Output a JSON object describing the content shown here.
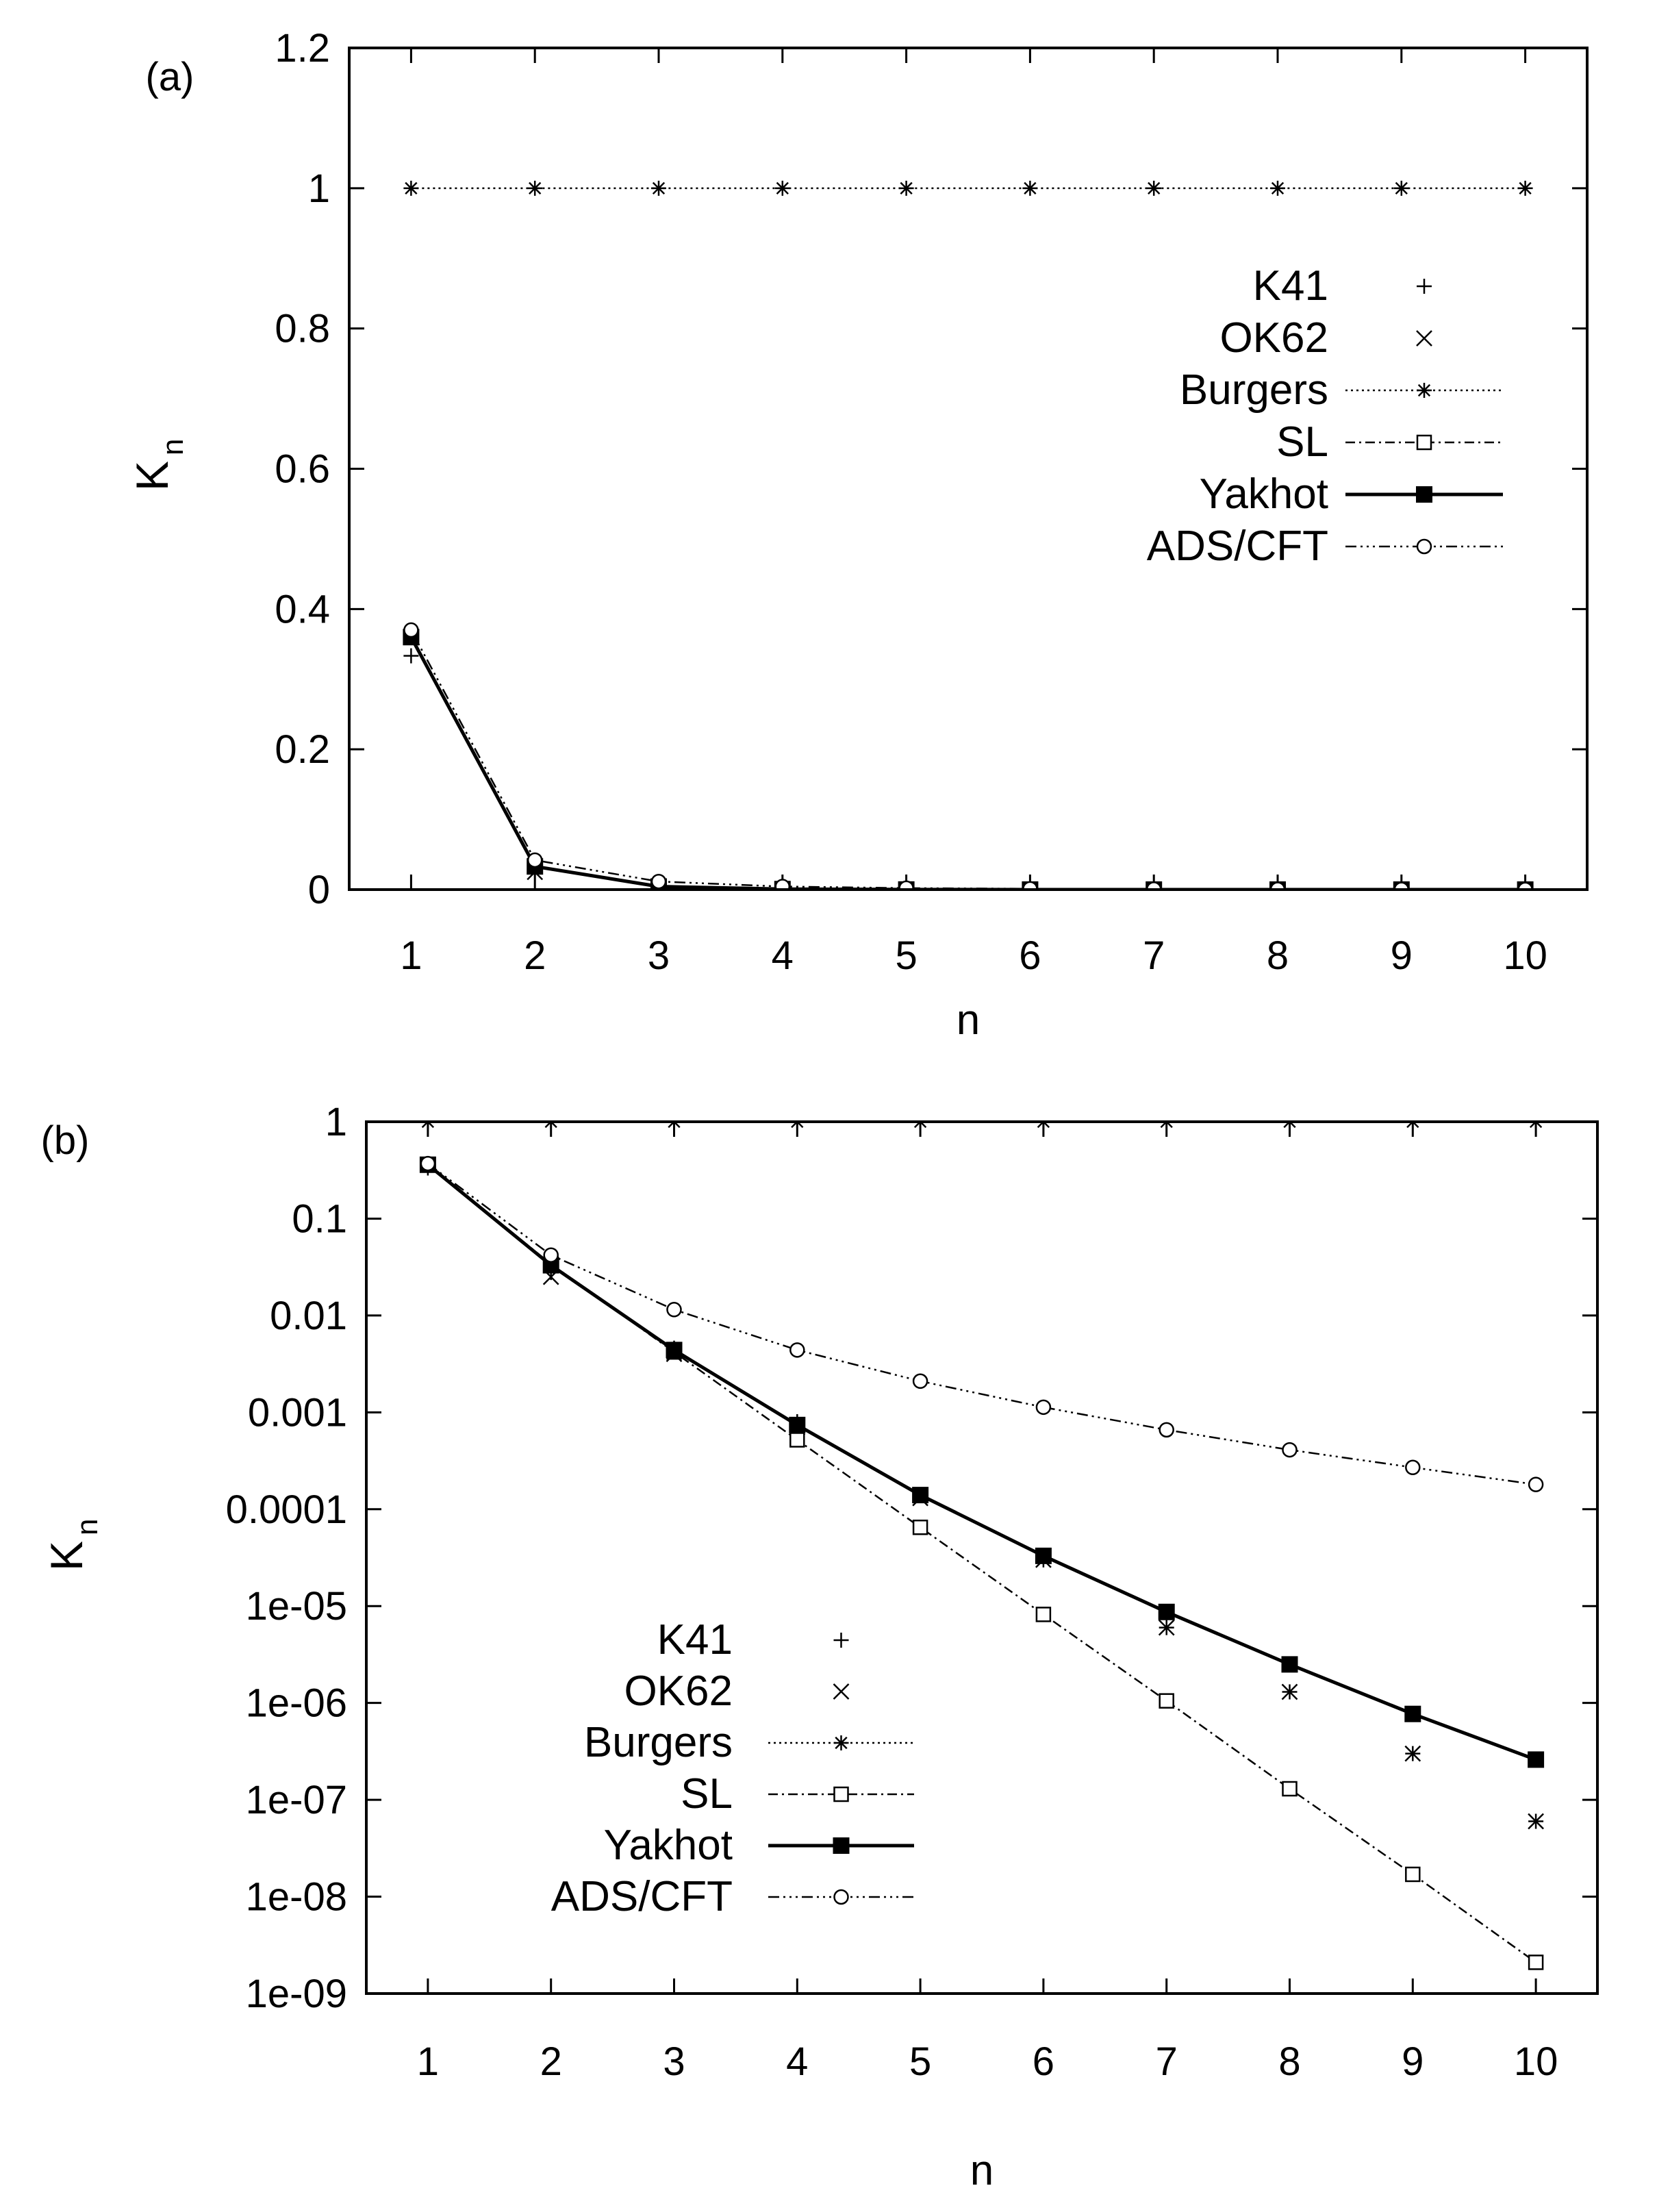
{
  "chart_data": [
    {
      "panel_label": "(a)",
      "type": "line",
      "yscale": "linear",
      "xlabel": "n",
      "ylabel": "K",
      "ylabel_sub": "n",
      "xlim": [
        0.5,
        10.5
      ],
      "ylim": [
        0,
        1.2
      ],
      "x_ticks": [
        "1",
        "2",
        "3",
        "4",
        "5",
        "6",
        "7",
        "8",
        "9",
        "10"
      ],
      "y_ticks": [
        "0",
        "0.2",
        "0.4",
        "0.6",
        "0.8",
        "1",
        "1.2"
      ],
      "legend_position": "right, below top",
      "x": [
        1,
        2,
        3,
        4,
        5,
        6,
        7,
        8,
        9,
        10
      ],
      "series": [
        {
          "name": "K41",
          "values": [
            0.3333,
            0.0278,
            0.0046,
            0.0008,
            0.00014,
            3e-05,
            6e-06,
            1.3e-06,
            3e-07,
            6e-08
          ]
        },
        {
          "name": "OK62",
          "values": [
            0.36,
            0.025,
            0.004,
            0.0007,
            0.00013,
            3e-05,
            6e-06,
            1.3e-06,
            3e-07,
            6e-08
          ]
        },
        {
          "name": "Burgers",
          "values": [
            1,
            1,
            1,
            1,
            1,
            1,
            1,
            1,
            1,
            1
          ]
        },
        {
          "name": "SL",
          "values": [
            0.36,
            0.034,
            0.0042,
            0.00052,
            6.5e-05,
            8.2e-06,
            1.05e-06,
            1.3e-07,
            1.7e-08,
            2.1e-09
          ]
        },
        {
          "name": "Yakhot",
          "values": [
            0.36,
            0.033,
            0.0044,
            0.00074,
            0.00014,
            3.3e-05,
            8.7e-06,
            2.5e-06,
            7.7e-07,
            2.6e-07
          ]
        },
        {
          "name": "ADS/CFT",
          "values": [
            0.37,
            0.042,
            0.0115,
            0.0044,
            0.0021,
            0.00113,
            0.00066,
            0.00041,
            0.00027,
            0.00018
          ]
        }
      ]
    },
    {
      "panel_label": "(b)",
      "type": "line",
      "yscale": "log",
      "xlabel": "n",
      "ylabel": "K",
      "ylabel_sub": "n",
      "xlim": [
        0.5,
        10.5
      ],
      "ylim": [
        1e-09,
        1
      ],
      "x_ticks": [
        "1",
        "2",
        "3",
        "4",
        "5",
        "6",
        "7",
        "8",
        "9",
        "10"
      ],
      "y_ticks": [
        "1e-09",
        "1e-08",
        "1e-07",
        "1e-06",
        "1e-05",
        "0.0001",
        "0.001",
        "0.01",
        "0.1",
        "1"
      ],
      "legend_position": "center, lower half",
      "x": [
        1,
        2,
        3,
        4,
        5,
        6,
        7,
        8,
        9,
        10
      ],
      "series": [
        {
          "name": "K41",
          "values": [
            0.3333,
            0.0278,
            0.0046,
            0.0008,
            0.00014,
            3e-05,
            6e-06,
            1.3e-06,
            3e-07,
            6e-08
          ]
        },
        {
          "name": "OK62",
          "values": [
            0.36,
            0.025,
            0.004,
            0.0007,
            0.00013,
            3e-05,
            6e-06,
            1.3e-06,
            3e-07,
            6e-08
          ]
        },
        {
          "name": "Burgers",
          "values": [
            1,
            1,
            1,
            1,
            1,
            1,
            1,
            1,
            1,
            1
          ]
        },
        {
          "name": "SL",
          "values": [
            0.36,
            0.034,
            0.0042,
            0.00052,
            6.5e-05,
            8.2e-06,
            1.05e-06,
            1.3e-07,
            1.7e-08,
            2.1e-09
          ]
        },
        {
          "name": "Yakhot",
          "values": [
            0.36,
            0.033,
            0.0044,
            0.00074,
            0.00014,
            3.3e-05,
            8.7e-06,
            2.5e-06,
            7.7e-07,
            2.6e-07
          ]
        },
        {
          "name": "ADS/CFT",
          "values": [
            0.37,
            0.042,
            0.0115,
            0.0044,
            0.0021,
            0.00113,
            0.00066,
            0.00041,
            0.00027,
            0.00018
          ]
        }
      ]
    }
  ]
}
